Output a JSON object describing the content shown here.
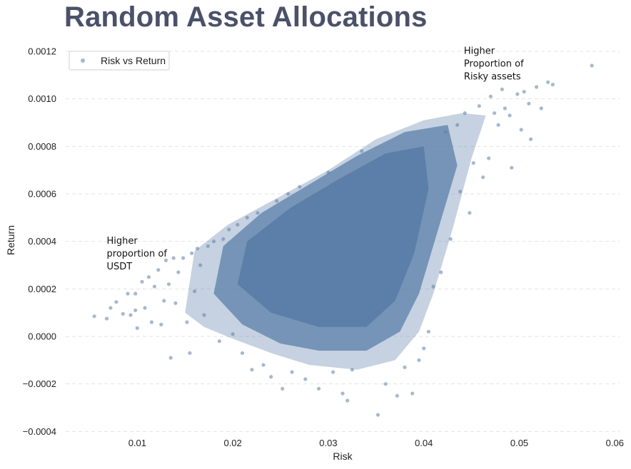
{
  "chart_data": {
    "type": "scatter",
    "title": "Random Asset Allocations",
    "xlabel": "Risk",
    "ylabel": "Return",
    "xlim": [
      0.0025,
      0.0605
    ],
    "ylim": [
      -0.00042,
      0.00123
    ],
    "xticks": [
      0.01,
      0.02,
      0.03,
      0.04,
      0.05,
      0.06
    ],
    "xtick_labels": [
      "0.01",
      "0.02",
      "0.03",
      "0.04",
      "0.05",
      "0.06"
    ],
    "yticks": [
      -0.0004,
      -0.0002,
      0.0,
      0.0002,
      0.0004,
      0.0006,
      0.0008,
      0.001,
      0.0012
    ],
    "ytick_labels": [
      "−0.0004",
      "−0.0002",
      "0.0000",
      "0.0002",
      "0.0004",
      "0.0006",
      "0.0008",
      "0.0010",
      "0.0012"
    ],
    "grid": "horizontal-dashed",
    "legend": {
      "placement": "top-left",
      "entries": [
        "Risk vs Return"
      ]
    },
    "series": [
      {
        "name": "Risk vs Return",
        "color": "#5b7fa8",
        "cloud_description": "dense elongated cloud from low-risk/low-return to high-risk/high-return",
        "points": [
          [
            0.0055,
            8.5e-05
          ],
          [
            0.0068,
            7.5e-05
          ],
          [
            0.0072,
            0.00012
          ],
          [
            0.0078,
            0.000145
          ],
          [
            0.0085,
            9.5e-05
          ],
          [
            0.009,
            0.00018
          ],
          [
            0.0093,
            9e-05
          ],
          [
            0.0098,
            0.00011
          ],
          [
            0.0098,
            0.00018
          ],
          [
            0.01,
            3.5e-05
          ],
          [
            0.0105,
            0.00023
          ],
          [
            0.0108,
            0.00012
          ],
          [
            0.0112,
            0.00025
          ],
          [
            0.0115,
            6e-05
          ],
          [
            0.0118,
            0.00021
          ],
          [
            0.0122,
            0.00028
          ],
          [
            0.0125,
            5e-05
          ],
          [
            0.0128,
            0.00015
          ],
          [
            0.013,
            0.00032
          ],
          [
            0.0133,
            0.00022
          ],
          [
            0.0135,
            -9e-05
          ],
          [
            0.0138,
            0.00033
          ],
          [
            0.014,
            0.00014
          ],
          [
            0.0143,
            0.00027
          ],
          [
            0.0148,
            0.00033
          ],
          [
            0.0152,
            6e-05
          ],
          [
            0.0155,
            -7e-05
          ],
          [
            0.0157,
            0.00035
          ],
          [
            0.016,
            0.00019
          ],
          [
            0.0163,
            0.00037
          ],
          [
            0.0166,
            0.0003
          ],
          [
            0.017,
            9e-05
          ],
          [
            0.0174,
            0.00038
          ],
          [
            0.018,
            0.0004
          ],
          [
            0.0186,
            -2e-05
          ],
          [
            0.019,
            0.00041
          ],
          [
            0.0196,
            0.00045
          ],
          [
            0.02,
            1e-05
          ],
          [
            0.0205,
            0.00047
          ],
          [
            0.021,
            -7e-05
          ],
          [
            0.0215,
            0.0005
          ],
          [
            0.022,
            -0.00014
          ],
          [
            0.0226,
            0.00052
          ],
          [
            0.0232,
            -0.00012
          ],
          [
            0.024,
            -0.00017
          ],
          [
            0.0246,
            0.00057
          ],
          [
            0.0252,
            -0.00022
          ],
          [
            0.0258,
            0.0006
          ],
          [
            0.0262,
            -0.00015
          ],
          [
            0.027,
            0.00063
          ],
          [
            0.0276,
            -0.00018
          ],
          [
            0.029,
            -0.00022
          ],
          [
            0.03,
            0.00069
          ],
          [
            0.0305,
            -0.00015
          ],
          [
            0.0315,
            -0.00024
          ],
          [
            0.032,
            -0.00027
          ],
          [
            0.0325,
            -0.00014
          ],
          [
            0.0335,
            0.00078
          ],
          [
            0.0352,
            -0.00033
          ],
          [
            0.036,
            -0.0002
          ],
          [
            0.0372,
            -0.00025
          ],
          [
            0.038,
            -0.00013
          ],
          [
            0.0388,
            -0.00024
          ],
          [
            0.0395,
            -0.0001
          ],
          [
            0.04,
            -5e-05
          ],
          [
            0.0405,
            2e-05
          ],
          [
            0.041,
            0.00021
          ],
          [
            0.0418,
            0.00027
          ],
          [
            0.0423,
            0.00086
          ],
          [
            0.0428,
            0.00041
          ],
          [
            0.0435,
            0.00089
          ],
          [
            0.0438,
            0.00061
          ],
          [
            0.0443,
            0.00094
          ],
          [
            0.0448,
            0.00052
          ],
          [
            0.0452,
            0.00073
          ],
          [
            0.0458,
            0.00097
          ],
          [
            0.0462,
            0.00067
          ],
          [
            0.0468,
            0.00075
          ],
          [
            0.047,
            0.00101
          ],
          [
            0.0474,
            0.00094
          ],
          [
            0.0478,
            0.00089
          ],
          [
            0.0482,
            0.00104
          ],
          [
            0.0485,
            0.00096
          ],
          [
            0.049,
            0.00093
          ],
          [
            0.0492,
            0.00071
          ],
          [
            0.0498,
            0.00102
          ],
          [
            0.0502,
            0.00087
          ],
          [
            0.0505,
            0.00103
          ],
          [
            0.051,
            0.00098
          ],
          [
            0.0512,
            0.00083
          ],
          [
            0.0518,
            0.00105
          ],
          [
            0.0523,
            0.00096
          ],
          [
            0.053,
            0.00107
          ],
          [
            0.0535,
            0.00106
          ],
          [
            0.0576,
            0.00114
          ]
        ]
      }
    ],
    "annotations": [
      {
        "lines": [
          "Higher",
          "proportion of",
          "USDT"
        ],
        "x": 0.0068,
        "y": 0.00039
      },
      {
        "lines": [
          "Higher",
          "Proportion of",
          "Risky assets"
        ],
        "x": 0.0442,
        "y": 0.00119
      }
    ]
  }
}
